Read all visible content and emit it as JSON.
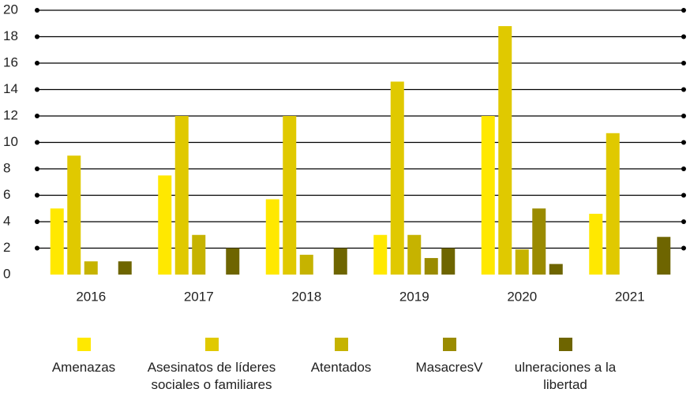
{
  "chart_data": {
    "type": "bar",
    "categories": [
      "2016",
      "2017",
      "2018",
      "2019",
      "2020",
      "2021"
    ],
    "series": [
      {
        "name": "Amenazas",
        "color": "#ffe800",
        "values": [
          5,
          7.5,
          5.7,
          3,
          12,
          4.6
        ]
      },
      {
        "name": "Asesinatos de líderes sociales o familiares",
        "color": "#e0c900",
        "values": [
          9,
          12,
          12,
          14.6,
          18.8,
          10.7
        ]
      },
      {
        "name": "Atentados",
        "color": "#c6b300",
        "values": [
          1,
          3,
          1.5,
          3,
          1.9,
          0
        ]
      },
      {
        "name": "MasacresV",
        "color": "#9a8b00",
        "values": [
          0,
          0,
          0,
          1.25,
          5,
          0
        ]
      },
      {
        "name": "ulneraciones a la libertad",
        "color": "#6e6500",
        "values": [
          1,
          2,
          2,
          2,
          0.8,
          2.85
        ]
      }
    ],
    "ylim": [
      0,
      20
    ],
    "yticks": [
      0,
      2,
      4,
      6,
      8,
      10,
      12,
      14,
      16,
      18,
      20
    ],
    "grid": true
  }
}
